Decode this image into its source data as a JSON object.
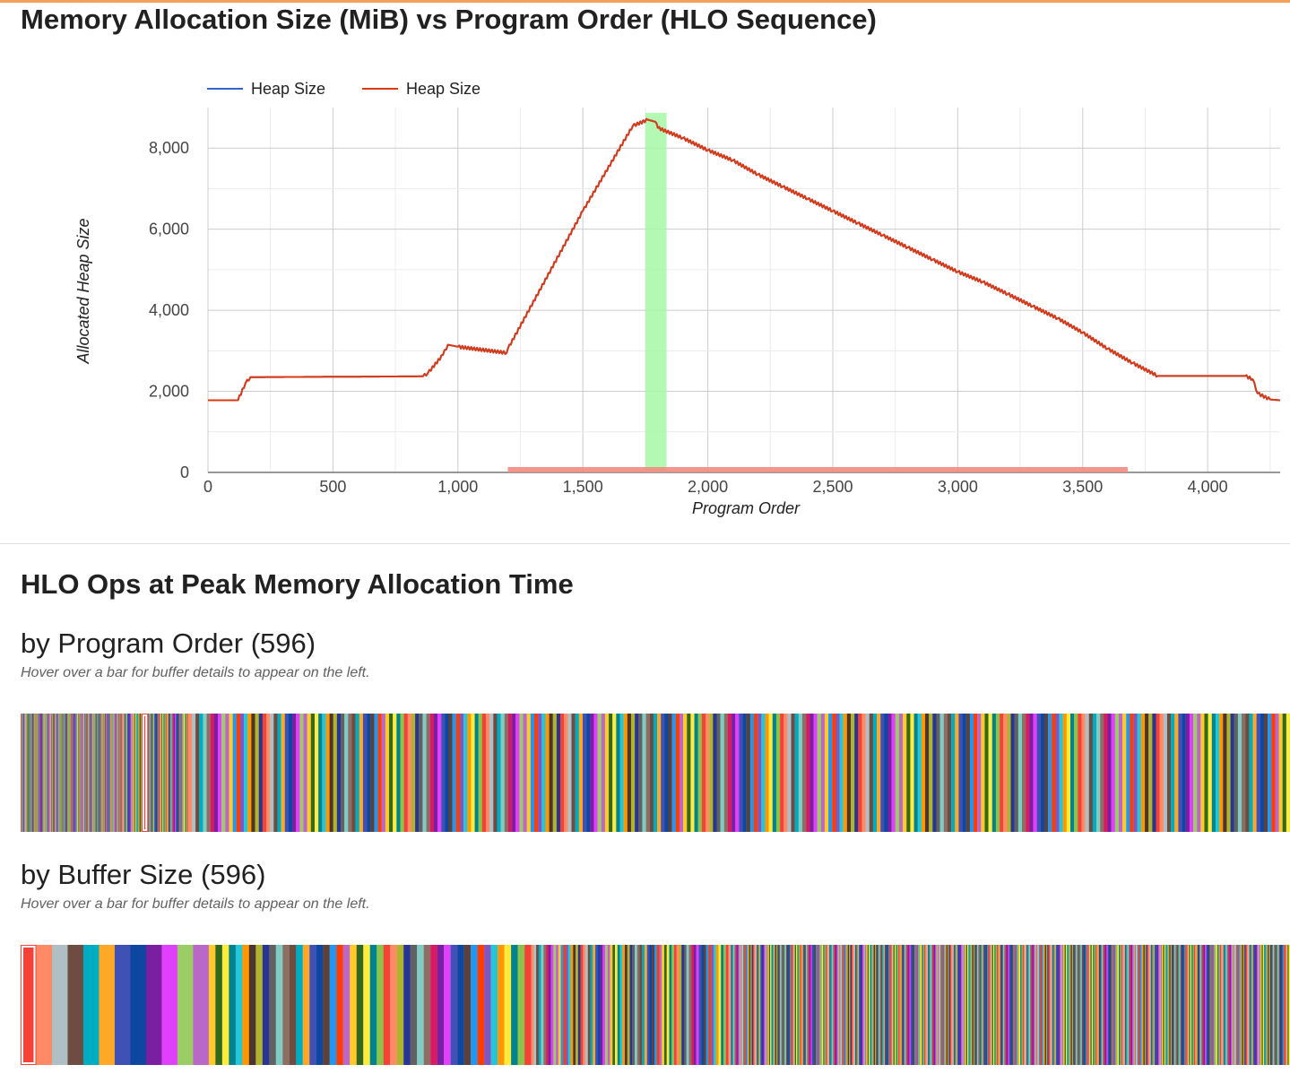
{
  "chart_title": "Memory Allocation Size (MiB) vs Program Order (HLO Sequence)",
  "chart_data": {
    "type": "line",
    "title": "Memory Allocation Size (MiB) vs Program Order (HLO Sequence)",
    "xlabel": "Program Order",
    "ylabel": "Allocated Heap Size",
    "xlim": [
      0,
      4290
    ],
    "ylim": [
      0,
      9000
    ],
    "x_ticks": [
      0,
      500,
      1000,
      1500,
      2000,
      2500,
      3000,
      3500,
      4000
    ],
    "x_tick_labels": [
      "0",
      "500",
      "1,000",
      "1,500",
      "2,000",
      "2,500",
      "3,000",
      "3,500",
      "4,000"
    ],
    "y_ticks": [
      0,
      2000,
      4000,
      6000,
      8000
    ],
    "y_tick_labels": [
      "0",
      "2,000",
      "4,000",
      "6,000",
      "8,000"
    ],
    "grid": true,
    "legend_position": "top",
    "series": [
      {
        "name": "Heap Size",
        "color": "#3366cc",
        "x": [
          0,
          120,
          150,
          170,
          860,
          880,
          940,
          960,
          1000,
          1195,
          1200,
          1500,
          1700,
          1760,
          1790,
          1800,
          1900,
          2000,
          2100,
          2200,
          2300,
          2400,
          2500,
          2600,
          2700,
          2800,
          2900,
          3000,
          3100,
          3200,
          3300,
          3400,
          3500,
          3600,
          3700,
          3800,
          4000,
          4150,
          4180,
          4200,
          4250,
          4290
        ],
        "values": [
          1780,
          1780,
          2200,
          2350,
          2370,
          2450,
          2900,
          3150,
          3100,
          2950,
          3050,
          6450,
          8550,
          8700,
          8650,
          8500,
          8250,
          7950,
          7700,
          7350,
          7050,
          6750,
          6450,
          6150,
          5850,
          5550,
          5250,
          4950,
          4700,
          4400,
          4100,
          3800,
          3450,
          3050,
          2700,
          2380,
          2380,
          2380,
          2300,
          1950,
          1800,
          1780
        ]
      },
      {
        "name": "Heap Size",
        "color": "#dc3912",
        "x": [
          0,
          120,
          150,
          170,
          860,
          880,
          940,
          960,
          1000,
          1195,
          1200,
          1500,
          1700,
          1760,
          1790,
          1800,
          1900,
          2000,
          2100,
          2200,
          2300,
          2400,
          2500,
          2600,
          2700,
          2800,
          2900,
          3000,
          3100,
          3200,
          3300,
          3400,
          3500,
          3600,
          3700,
          3800,
          4000,
          4150,
          4180,
          4200,
          4250,
          4290
        ],
        "values": [
          1780,
          1780,
          2200,
          2350,
          2370,
          2450,
          2900,
          3150,
          3100,
          2950,
          3050,
          6450,
          8550,
          8700,
          8650,
          8500,
          8250,
          7950,
          7700,
          7350,
          7050,
          6750,
          6450,
          6150,
          5850,
          5550,
          5250,
          4950,
          4700,
          4400,
          4100,
          3800,
          3450,
          3050,
          2700,
          2380,
          2380,
          2380,
          2300,
          1950,
          1800,
          1780
        ]
      }
    ],
    "peak_highlight": {
      "x_start": 1750,
      "x_end": 1835,
      "color": "#a6f7a6"
    },
    "selection_band": {
      "x_start": 1200,
      "x_end": 3680,
      "color": "#f28b82"
    }
  },
  "section_title": "HLO Ops at Peak Memory Allocation Time",
  "program_order": {
    "title": "by Program Order (596)",
    "hint": "Hover over a bar for buffer details to appear on the left.",
    "bar_count": 596,
    "selected_index": 260
  },
  "buffer_size": {
    "title": "by Buffer Size (596)",
    "hint": "Hover over a bar for buffer details to appear on the left.",
    "bar_count": 596,
    "selected_index": 0
  },
  "palette": [
    "#f44336",
    "#ff9800",
    "#33691e",
    "#2196f3",
    "#e040fb",
    "#ffa726",
    "#80cbc4",
    "#ff8a65",
    "#4e342e",
    "#ffeb3b",
    "#ff3d00",
    "#9ccc65",
    "#3f51b5",
    "#8d6e63",
    "#b0bec5",
    "#afb42b",
    "#00838f",
    "#7e57c2",
    "#ba68c8",
    "#0d47a1",
    "#d81b60",
    "#6d4c41",
    "#283593",
    "#8bc34a",
    "#26c6da",
    "#ffca28",
    "#5d4037",
    "#7b1fa2",
    "#00acc1",
    "#616161"
  ]
}
